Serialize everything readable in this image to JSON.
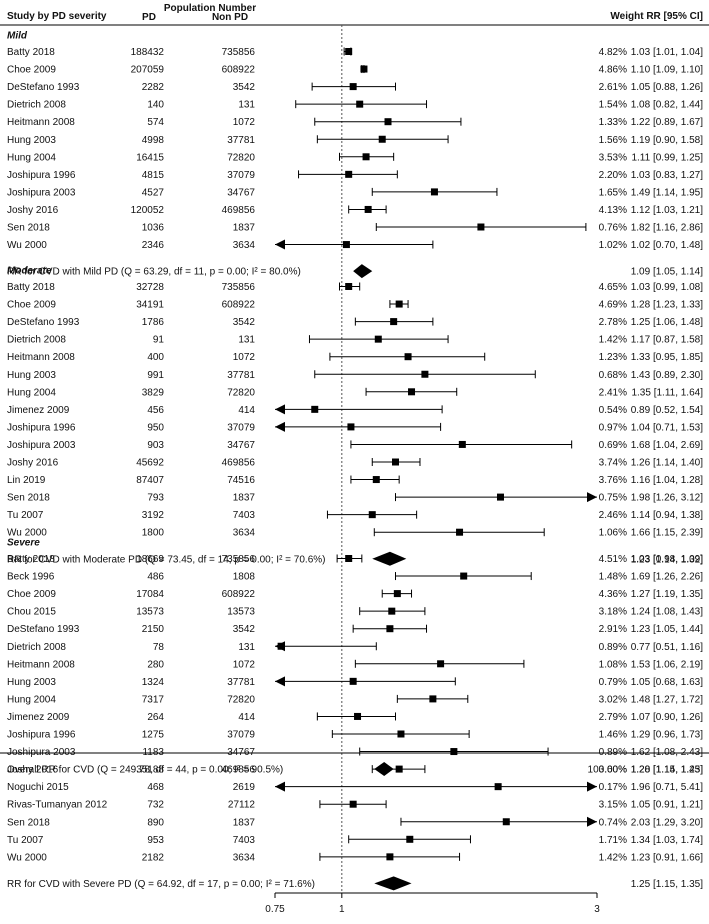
{
  "chart_data": {
    "type": "forest",
    "headers": {
      "study": "Study by PD severity",
      "population": "Population Number",
      "pd": "PD",
      "non_pd": "Non PD",
      "weight_rr": "Weight RR [95% CI]"
    },
    "axis": {
      "scale": "log",
      "xlim": [
        0.75,
        3
      ],
      "ticks": [
        0.75,
        1,
        3
      ],
      "tick_labels": [
        "0.75",
        "1",
        "3"
      ],
      "reference_line": 1
    },
    "groups": [
      {
        "name": "Mild",
        "studies": [
          {
            "study": "Batty 2018",
            "pd": "188432",
            "non_pd": "735856",
            "weight": "4.82%",
            "rr": 1.03,
            "lo": 1.01,
            "hi": 1.04,
            "ci_text": "1.03 [1.01, 1.04]"
          },
          {
            "study": "Choe 2009",
            "pd": "207059",
            "non_pd": "608922",
            "weight": "4.86%",
            "rr": 1.1,
            "lo": 1.09,
            "hi": 1.1,
            "ci_text": "1.10 [1.09, 1.10]"
          },
          {
            "study": "DeStefano 1993",
            "pd": "2282",
            "non_pd": "3542",
            "weight": "2.61%",
            "rr": 1.05,
            "lo": 0.88,
            "hi": 1.26,
            "ci_text": "1.05 [0.88, 1.26]"
          },
          {
            "study": "Dietrich 2008",
            "pd": "140",
            "non_pd": "131",
            "weight": "1.54%",
            "rr": 1.08,
            "lo": 0.82,
            "hi": 1.44,
            "ci_text": "1.08 [0.82, 1.44]"
          },
          {
            "study": "Heitmann 2008",
            "pd": "574",
            "non_pd": "1072",
            "weight": "1.33%",
            "rr": 1.22,
            "lo": 0.89,
            "hi": 1.67,
            "ci_text": "1.22 [0.89, 1.67]"
          },
          {
            "study": "Hung 2003",
            "pd": "4998",
            "non_pd": "37781",
            "weight": "1.56%",
            "rr": 1.19,
            "lo": 0.9,
            "hi": 1.58,
            "ci_text": "1.19 [0.90, 1.58]"
          },
          {
            "study": "Hung 2004",
            "pd": "16415",
            "non_pd": "72820",
            "weight": "3.53%",
            "rr": 1.11,
            "lo": 0.99,
            "hi": 1.25,
            "ci_text": "1.11 [0.99, 1.25]"
          },
          {
            "study": "Joshipura 1996",
            "pd": "4815",
            "non_pd": "37079",
            "weight": "2.20%",
            "rr": 1.03,
            "lo": 0.83,
            "hi": 1.27,
            "ci_text": "1.03 [0.83, 1.27]"
          },
          {
            "study": "Joshipura 2003",
            "pd": "4527",
            "non_pd": "34767",
            "weight": "1.65%",
            "rr": 1.49,
            "lo": 1.14,
            "hi": 1.95,
            "ci_text": "1.49 [1.14, 1.95]"
          },
          {
            "study": "Joshy 2016",
            "pd": "120052",
            "non_pd": "469856",
            "weight": "4.13%",
            "rr": 1.12,
            "lo": 1.03,
            "hi": 1.21,
            "ci_text": "1.12 [1.03, 1.21]"
          },
          {
            "study": "Sen 2018",
            "pd": "1036",
            "non_pd": "1837",
            "weight": "0.76%",
            "rr": 1.82,
            "lo": 1.16,
            "hi": 2.86,
            "ci_text": "1.82 [1.16, 2.86]"
          },
          {
            "study": "Wu 2000",
            "pd": "2346",
            "non_pd": "3634",
            "weight": "1.02%",
            "rr": 1.02,
            "lo": 0.7,
            "hi": 1.48,
            "ci_text": "1.02 [0.70, 1.48]"
          }
        ],
        "summary": {
          "label": "RR for CVD with Mild PD (Q = 63.29, df = 11, p = 0.00; I² = 80.0%)",
          "rr": 1.09,
          "lo": 1.05,
          "hi": 1.14,
          "ci_text": "1.09 [1.05, 1.14]"
        }
      },
      {
        "name": "Moderate",
        "studies": [
          {
            "study": "Batty 2018",
            "pd": "32728",
            "non_pd": "735856",
            "weight": "4.65%",
            "rr": 1.03,
            "lo": 0.99,
            "hi": 1.08,
            "ci_text": "1.03 [0.99, 1.08]"
          },
          {
            "study": "Choe 2009",
            "pd": "34191",
            "non_pd": "608922",
            "weight": "4.69%",
            "rr": 1.28,
            "lo": 1.23,
            "hi": 1.33,
            "ci_text": "1.28 [1.23, 1.33]"
          },
          {
            "study": "DeStefano 1993",
            "pd": "1786",
            "non_pd": "3542",
            "weight": "2.78%",
            "rr": 1.25,
            "lo": 1.06,
            "hi": 1.48,
            "ci_text": "1.25 [1.06, 1.48]"
          },
          {
            "study": "Dietrich 2008",
            "pd": "91",
            "non_pd": "131",
            "weight": "1.42%",
            "rr": 1.17,
            "lo": 0.87,
            "hi": 1.58,
            "ci_text": "1.17 [0.87, 1.58]"
          },
          {
            "study": "Heitmann 2008",
            "pd": "400",
            "non_pd": "1072",
            "weight": "1.23%",
            "rr": 1.33,
            "lo": 0.95,
            "hi": 1.85,
            "ci_text": "1.33 [0.95, 1.85]"
          },
          {
            "study": "Hung 2003",
            "pd": "991",
            "non_pd": "37781",
            "weight": "0.68%",
            "rr": 1.43,
            "lo": 0.89,
            "hi": 2.3,
            "ci_text": "1.43 [0.89, 2.30]"
          },
          {
            "study": "Hung 2004",
            "pd": "3829",
            "non_pd": "72820",
            "weight": "2.41%",
            "rr": 1.35,
            "lo": 1.11,
            "hi": 1.64,
            "ci_text": "1.35 [1.11, 1.64]"
          },
          {
            "study": "Jimenez 2009",
            "pd": "456",
            "non_pd": "414",
            "weight": "0.54%",
            "rr": 0.89,
            "lo": 0.52,
            "hi": 1.54,
            "ci_text": "0.89 [0.52, 1.54]"
          },
          {
            "study": "Joshipura 1996",
            "pd": "950",
            "non_pd": "37079",
            "weight": "0.97%",
            "rr": 1.04,
            "lo": 0.71,
            "hi": 1.53,
            "ci_text": "1.04 [0.71, 1.53]"
          },
          {
            "study": "Joshipura 2003",
            "pd": "903",
            "non_pd": "34767",
            "weight": "0.69%",
            "rr": 1.68,
            "lo": 1.04,
            "hi": 2.69,
            "ci_text": "1.68 [1.04, 2.69]"
          },
          {
            "study": "Joshy 2016",
            "pd": "45692",
            "non_pd": "469856",
            "weight": "3.74%",
            "rr": 1.26,
            "lo": 1.14,
            "hi": 1.4,
            "ci_text": "1.26 [1.14, 1.40]"
          },
          {
            "study": "Lin 2019",
            "pd": "87407",
            "non_pd": "74516",
            "weight": "3.76%",
            "rr": 1.16,
            "lo": 1.04,
            "hi": 1.28,
            "ci_text": "1.16 [1.04, 1.28]"
          },
          {
            "study": "Sen 2018",
            "pd": "793",
            "non_pd": "1837",
            "weight": "0.75%",
            "rr": 1.98,
            "lo": 1.26,
            "hi": 3.12,
            "ci_text": "1.98 [1.26, 3.12]"
          },
          {
            "study": "Tu 2007",
            "pd": "3192",
            "non_pd": "7403",
            "weight": "2.46%",
            "rr": 1.14,
            "lo": 0.94,
            "hi": 1.38,
            "ci_text": "1.14 [0.94, 1.38]"
          },
          {
            "study": "Wu 2000",
            "pd": "1800",
            "non_pd": "3634",
            "weight": "1.06%",
            "rr": 1.66,
            "lo": 1.15,
            "hi": 2.39,
            "ci_text": "1.66 [1.15, 2.39]"
          }
        ],
        "summary": {
          "label": "RR for CVD with Moderate PD (Q = 73.45, df = 14, p = 0.00; I² = 70.6%)",
          "rr": 1.23,
          "lo": 1.14,
          "hi": 1.32,
          "ci_text": "1.23 [1.14, 1.32]"
        }
      },
      {
        "name": "Severe",
        "studies": [
          {
            "study": "Batty 2018",
            "pd": "18669",
            "non_pd": "735856",
            "weight": "4.51%",
            "rr": 1.03,
            "lo": 0.98,
            "hi": 1.09,
            "ci_text": "1.03 [0.98, 1.09]"
          },
          {
            "study": "Beck 1996",
            "pd": "486",
            "non_pd": "1808",
            "weight": "1.48%",
            "rr": 1.69,
            "lo": 1.26,
            "hi": 2.26,
            "ci_text": "1.69 [1.26, 2.26]"
          },
          {
            "study": "Choe 2009",
            "pd": "17084",
            "non_pd": "608922",
            "weight": "4.36%",
            "rr": 1.27,
            "lo": 1.19,
            "hi": 1.35,
            "ci_text": "1.27 [1.19, 1.35]"
          },
          {
            "study": "Chou 2015",
            "pd": "13573",
            "non_pd": "13573",
            "weight": "3.18%",
            "rr": 1.24,
            "lo": 1.08,
            "hi": 1.43,
            "ci_text": "1.24 [1.08, 1.43]"
          },
          {
            "study": "DeStefano 1993",
            "pd": "2150",
            "non_pd": "3542",
            "weight": "2.91%",
            "rr": 1.23,
            "lo": 1.05,
            "hi": 1.44,
            "ci_text": "1.23 [1.05, 1.44]"
          },
          {
            "study": "Dietrich 2008",
            "pd": "78",
            "non_pd": "131",
            "weight": "0.89%",
            "rr": 0.77,
            "lo": 0.51,
            "hi": 1.16,
            "ci_text": "0.77 [0.51, 1.16]"
          },
          {
            "study": "Heitmann 2008",
            "pd": "280",
            "non_pd": "1072",
            "weight": "1.08%",
            "rr": 1.53,
            "lo": 1.06,
            "hi": 2.19,
            "ci_text": "1.53 [1.06, 2.19]"
          },
          {
            "study": "Hung 2003",
            "pd": "1324",
            "non_pd": "37781",
            "weight": "0.79%",
            "rr": 1.05,
            "lo": 0.68,
            "hi": 1.63,
            "ci_text": "1.05 [0.68, 1.63]"
          },
          {
            "study": "Hung 2004",
            "pd": "7317",
            "non_pd": "72820",
            "weight": "3.02%",
            "rr": 1.48,
            "lo": 1.27,
            "hi": 1.72,
            "ci_text": "1.48 [1.27, 1.72]"
          },
          {
            "study": "Jimenez 2009",
            "pd": "264",
            "non_pd": "414",
            "weight": "2.79%",
            "rr": 1.07,
            "lo": 0.9,
            "hi": 1.26,
            "ci_text": "1.07 [0.90, 1.26]"
          },
          {
            "study": "Joshipura 1996",
            "pd": "1275",
            "non_pd": "37079",
            "weight": "1.46%",
            "rr": 1.29,
            "lo": 0.96,
            "hi": 1.73,
            "ci_text": "1.29 [0.96, 1.73]"
          },
          {
            "study": "Joshipura 2003",
            "pd": "1183",
            "non_pd": "34767",
            "weight": "0.89%",
            "rr": 1.62,
            "lo": 1.08,
            "hi": 2.43,
            "ci_text": "1.62 [1.08, 2.43]"
          },
          {
            "study": "Joshy 2016",
            "pd": "35188",
            "non_pd": "469856",
            "weight": "3.60%",
            "rr": 1.28,
            "lo": 1.14,
            "hi": 1.43,
            "ci_text": "1.28 [1.14, 1.43]"
          },
          {
            "study": "Noguchi 2015",
            "pd": "468",
            "non_pd": "2619",
            "weight": "0.17%",
            "rr": 1.96,
            "lo": 0.71,
            "hi": 5.41,
            "ci_text": "1.96 [0.71, 5.41]"
          },
          {
            "study": "Rivas-Tumanyan 2012",
            "pd": "732",
            "non_pd": "27112",
            "weight": "3.15%",
            "rr": 1.05,
            "lo": 0.91,
            "hi": 1.21,
            "ci_text": "1.05 [0.91, 1.21]"
          },
          {
            "study": "Sen 2018",
            "pd": "890",
            "non_pd": "1837",
            "weight": "0.74%",
            "rr": 2.03,
            "lo": 1.29,
            "hi": 3.2,
            "ci_text": "2.03 [1.29, 3.20]"
          },
          {
            "study": "Tu 2007",
            "pd": "953",
            "non_pd": "7403",
            "weight": "1.71%",
            "rr": 1.34,
            "lo": 1.03,
            "hi": 1.74,
            "ci_text": "1.34 [1.03, 1.74]"
          },
          {
            "study": "Wu 2000",
            "pd": "2182",
            "non_pd": "3634",
            "weight": "1.42%",
            "rr": 1.23,
            "lo": 0.91,
            "hi": 1.66,
            "ci_text": "1.23 [0.91, 1.66]"
          }
        ],
        "summary": {
          "label": "RR for CVD with Severe PD (Q = 64.92, df = 17, p = 0.00; I² = 71.6%)",
          "rr": 1.25,
          "lo": 1.15,
          "hi": 1.35,
          "ci_text": "1.25 [1.15, 1.35]"
        }
      }
    ],
    "overall": {
      "label": "Overall RR for CVD (Q = 249.78, df = 44, p = 0.00; I² = 90.5%)",
      "weight": "100.00%",
      "rr": 1.2,
      "lo": 1.15,
      "hi": 1.25,
      "ci_text": "1.20 [1.15, 1.25]"
    }
  }
}
